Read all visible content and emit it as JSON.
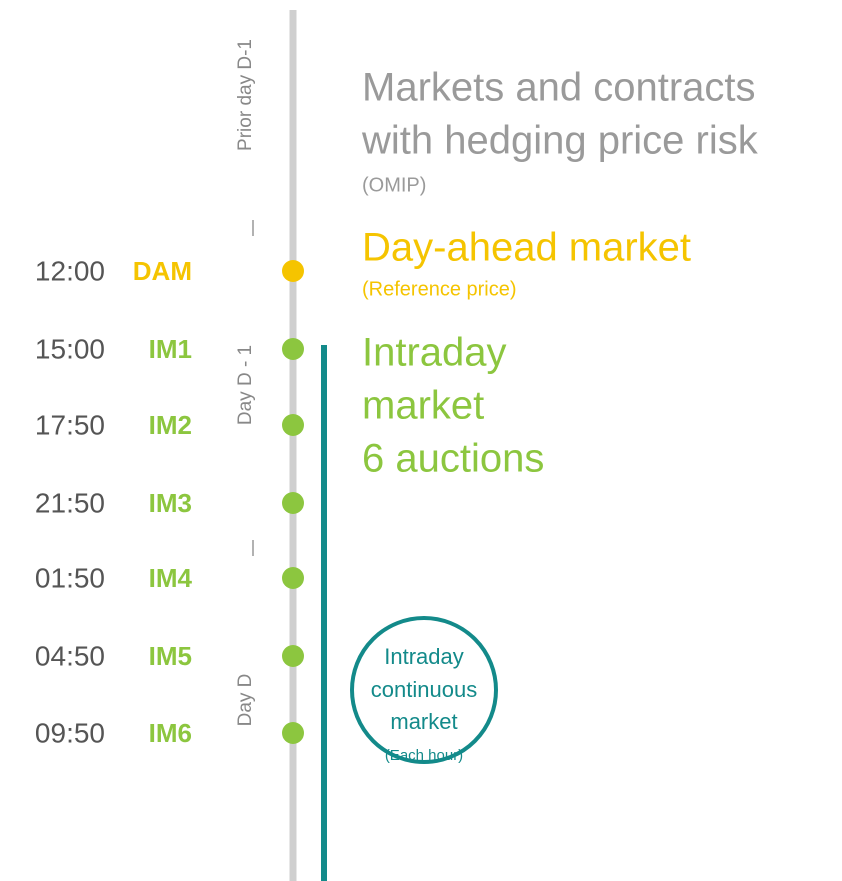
{
  "timeline": {
    "periods": [
      "Prior day D-1",
      "Day D - 1",
      "Day D"
    ],
    "events": [
      {
        "time": "12:00",
        "market": "DAM"
      },
      {
        "time": "15:00",
        "market": "IM1"
      },
      {
        "time": "17:50",
        "market": "IM2"
      },
      {
        "time": "21:50",
        "market": "IM3"
      },
      {
        "time": "01:50",
        "market": "IM4"
      },
      {
        "time": "04:50",
        "market": "IM5"
      },
      {
        "time": "09:50",
        "market": "IM6"
      }
    ]
  },
  "blocks": {
    "forward": {
      "title_lines": [
        "Markets and contracts",
        "with hedging price risk"
      ],
      "note": "(OMIP)"
    },
    "day_ahead": {
      "title": "Day-ahead market",
      "note": "(Reference price)"
    },
    "intraday": {
      "title_lines": [
        "Intraday",
        "market",
        "6 auctions"
      ]
    },
    "continuous": {
      "title_lines": [
        "Intraday",
        "continuous",
        "market"
      ],
      "note": "(Each hour)"
    }
  }
}
